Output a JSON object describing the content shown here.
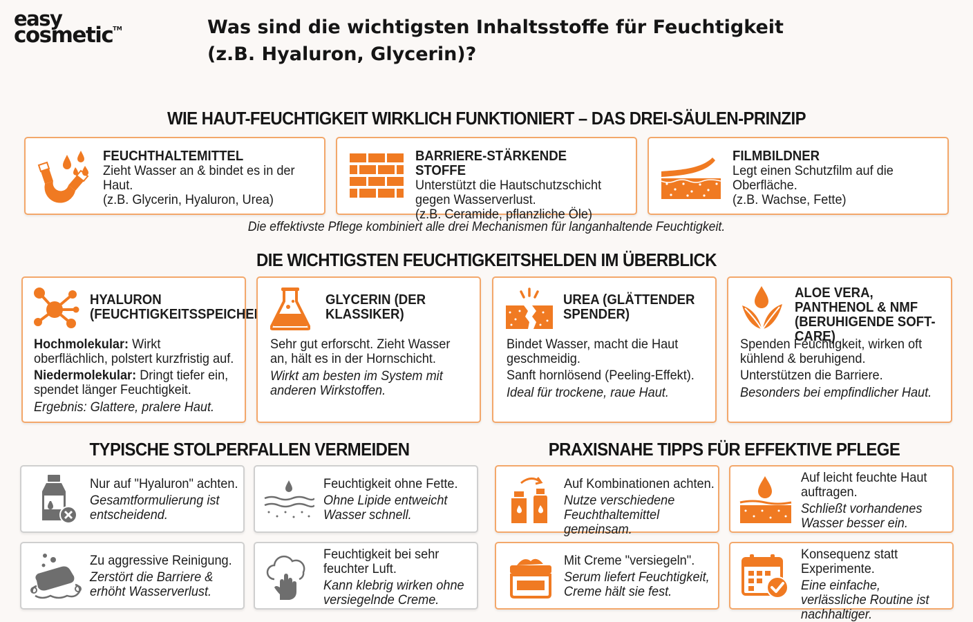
{
  "logo": {
    "line1": "easy",
    "line2": "cosmetic",
    "tm": "TM"
  },
  "title": "Was sind die wichtigsten Inhaltsstoffe für Feuchtigkeit (z.B. Hyaluron, Glycerin)?",
  "section1": {
    "title": "WIE HAUT-FEUCHTIGKEIT WIRKLICH FUNKTIONIERT – DAS DREI-SÄULEN-PRINZIP",
    "cards": [
      {
        "icon": "magnet-drops-icon",
        "heading": "FEUCHTHALTEMITTEL",
        "line1": "Zieht Wasser an & bindet es in der Haut.",
        "line2": "(z.B. Glycerin, Hyaluron, Urea)"
      },
      {
        "icon": "brick-wall-icon",
        "heading": "BARRIERE-STÄRKENDE STOFFE",
        "line1": "Unterstützt die Hautschutzschicht gegen Wasserverlust.",
        "line2": "(z.B. Ceramide, pflanzliche Öle)"
      },
      {
        "icon": "skin-film-icon",
        "heading": "FILMBILDNER",
        "line1": "Legt einen Schutzfilm auf die Oberfläche.",
        "line2": "(z.B. Wachse, Fette)"
      }
    ],
    "footnote": "Die effektivste Pflege kombiniert alle drei Mechanismen für langanhaltende Feuchtigkeit."
  },
  "section2": {
    "title": "DIE WICHTIGSTEN FEUCHTIGKEITSHELDEN IM ÜBERBLICK",
    "cards": [
      {
        "icon": "molecule-icon",
        "heading": "HYALURON (FEUCHTIGKEITSSPEICHER)",
        "b1": "Hochmolekular:",
        "t1": " Wirkt oberflächlich, polstert kurzfristig auf.",
        "b2": "Niedermolekular:",
        "t2": " Dringt tiefer ein, spendet länger Feuchtigkeit.",
        "italic": "Ergebnis: Glattere, pralere Haut."
      },
      {
        "icon": "flask-icon",
        "heading": "GLYCERIN (DER KLASSIKER)",
        "text": "Sehr gut erforscht. Zieht Wasser an, hält es in der Hornschicht.",
        "italic": "Wirkt am besten im System mit anderen Wirkstoffen."
      },
      {
        "icon": "cracked-skin-icon",
        "heading": "UREA (GLÄTTENDER SPENDER)",
        "text": "Bindet Wasser, macht die Haut geschmeidig.",
        "text2": "Sanft hornlösend (Peeling-Effekt).",
        "italic": "Ideal für trockene, raue Haut."
      },
      {
        "icon": "leaf-drop-icon",
        "heading": "ALOE VERA, PANTHENOL & NMF (BERUHIGENDE SOFT-CARE)",
        "text": "Spenden Feuchtigkeit, wirken oft kühlend & beruhigend.",
        "text2": "Unterstützen die Barriere.",
        "italic": "Besonders bei empfindlicher Haut."
      }
    ]
  },
  "section3": {
    "title": "TYPISCHE STOLPERFALLEN VERMEIDEN",
    "cards": [
      {
        "icon": "bottle-x-icon",
        "text": "Nur auf \"Hyaluron\" achten.",
        "italic": "Gesamtformulierung ist entscheidend."
      },
      {
        "icon": "evaporating-drop-icon",
        "text": "Feuchtigkeit ohne Fette.",
        "italic": "Ohne Lipide entweicht Wasser schnell."
      },
      {
        "icon": "soap-icon",
        "text": "Zu aggressive Reinigung.",
        "italic": "Zerstört die Barriere & erhöht Wasserverlust."
      },
      {
        "icon": "cloud-hand-icon",
        "text": "Feuchtigkeit bei sehr feuchter Luft.",
        "italic": "Kann klebrig wirken ohne versiegelnde Creme."
      }
    ]
  },
  "section4": {
    "title": "PRAXISNAHE TIPPS FÜR EFFEKTIVE PFLEGE",
    "cards": [
      {
        "icon": "bottles-combine-icon",
        "text": "Auf Kombinationen achten.",
        "italic": "Nutze verschiedene Feuchthaltemittel gemeinsam."
      },
      {
        "icon": "drop-skin-icon",
        "text": "Auf leicht feuchte Haut auftragen.",
        "italic": "Schließt vorhandenes Wasser besser ein."
      },
      {
        "icon": "cream-jar-icon",
        "text": "Mit Creme \"versiegeln\".",
        "italic": "Serum liefert Feuchtigkeit, Creme hält sie fest."
      },
      {
        "icon": "calendar-check-icon",
        "text": "Konsequenz statt Experimente.",
        "italic": "Eine einfache, verlässliche Routine ist nachhaltiger."
      }
    ]
  },
  "colors": {
    "accent": "#f07a22",
    "grey_icon": "#6e6e6e",
    "border_orange": "#f3a76a",
    "border_grey": "#cfcfcf"
  }
}
